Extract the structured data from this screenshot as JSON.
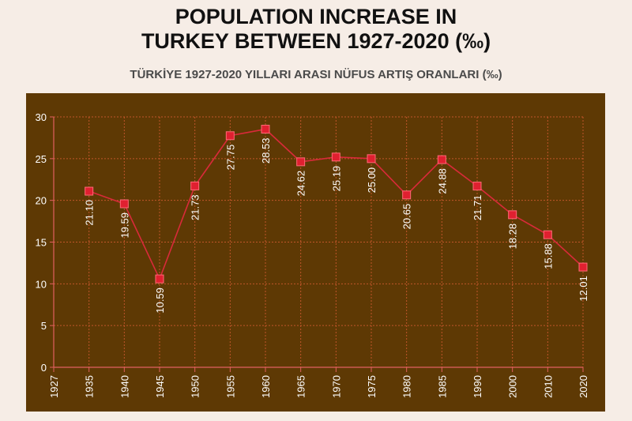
{
  "title_line1": "POPULATION INCREASE IN",
  "title_line2": "TURKEY BETWEEN 1927-2020 (‰)",
  "subtitle": "TÜRKİYE 1927-2020 YILLARI ARASI NÜFUS ARTIŞ ORANLARI (‰)",
  "colors": {
    "background": "#f6ede6",
    "panel": "#5e3904",
    "axis": "#e06060",
    "grid": "#c0552a",
    "line": "#d92a3a",
    "marker": "#e02030",
    "text": "#ffffff"
  },
  "chart_data": {
    "type": "line",
    "categories": [
      "1927",
      "1935",
      "1940",
      "1945",
      "1950",
      "1955",
      "1960",
      "1965",
      "1970",
      "1975",
      "1980",
      "1985",
      "1990",
      "2000",
      "2010",
      "2020"
    ],
    "series": [
      {
        "values": [
          null,
          21.1,
          19.59,
          10.59,
          21.73,
          27.75,
          28.53,
          24.62,
          25.19,
          25.0,
          20.65,
          24.88,
          21.71,
          18.28,
          15.88,
          12.01
        ],
        "labels": [
          "",
          "21.10",
          "19.59",
          "10.59",
          "21.73",
          "27.75",
          "28.53",
          "24.62",
          "25.19",
          "25.00",
          "20.65",
          "24.88",
          "21.71",
          "18.28",
          "15.88",
          "12.01"
        ]
      }
    ],
    "yticks": [
      "0",
      "5",
      "10",
      "15",
      "20",
      "25",
      "30"
    ],
    "ylim": [
      0,
      30
    ],
    "grid": true,
    "xlabel": "",
    "ylabel": ""
  }
}
